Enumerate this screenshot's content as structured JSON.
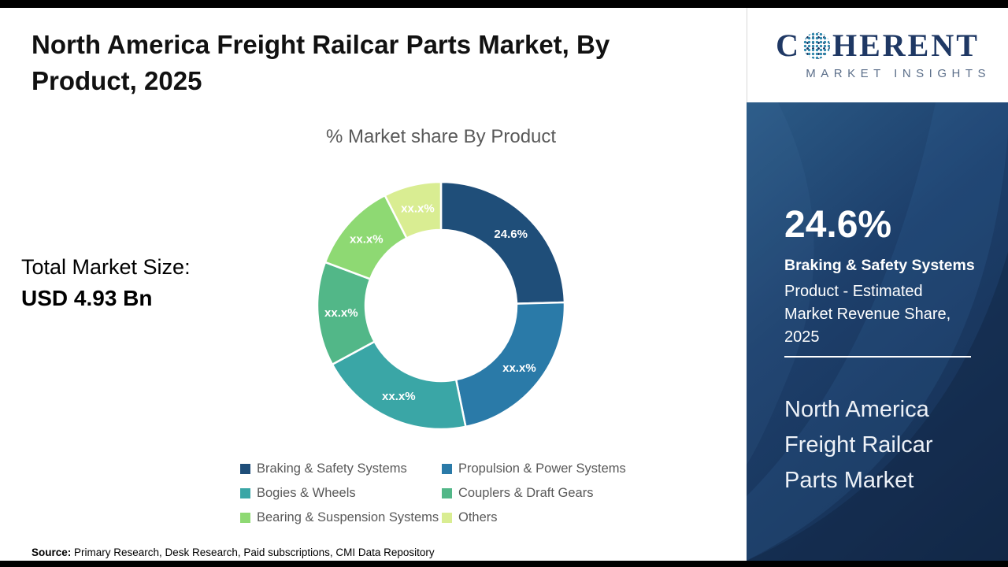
{
  "page": {
    "title": "North America Freight Railcar Parts Market, By Product, 2025",
    "total_market_label": "Total Market Size:",
    "total_market_value": "USD 4.93 Bn",
    "source_prefix": "Source:",
    "source_text": " Primary Research, Desk Research, Paid subscriptions, CMI Data Repository"
  },
  "logo": {
    "brand_prefix": "C",
    "brand_suffix": "HERENT",
    "tagline": "MARKET INSIGHTS",
    "brand_color": "#1F3864"
  },
  "right_panel": {
    "stat_value": "24.6%",
    "stat_title": "Braking  & Safety Systems",
    "stat_desc": "Product - Estimated Market Revenue Share, 2025",
    "market_name": "North America Freight Railcar Parts Market",
    "background_color": "#1d3f6b"
  },
  "chart_data": {
    "type": "donut",
    "title": "% Market share By Product",
    "legend_position": "bottom",
    "inner_radius_ratio": 0.61,
    "segments": [
      {
        "label": "Braking  & Safety Systems",
        "value": 24.6,
        "display": "24.6%",
        "color": "#1F4E79"
      },
      {
        "label": "Propulsion & Power Systems",
        "value": 22.2,
        "display": "xx.x%",
        "color": "#2A7AA8"
      },
      {
        "label": "Bogies & Wheels",
        "value": 20.3,
        "display": "xx.x%",
        "color": "#3AA6A6"
      },
      {
        "label": "Couplers & Draft Gears",
        "value": 13.6,
        "display": "xx.x%",
        "color": "#52B788"
      },
      {
        "label": "Bearing & Suspension Systems",
        "value": 11.8,
        "display": "xx.x%",
        "color": "#8ED973"
      },
      {
        "label": "Others",
        "value": 7.5,
        "display": "xx.x%",
        "color": "#D9ED92"
      }
    ]
  }
}
